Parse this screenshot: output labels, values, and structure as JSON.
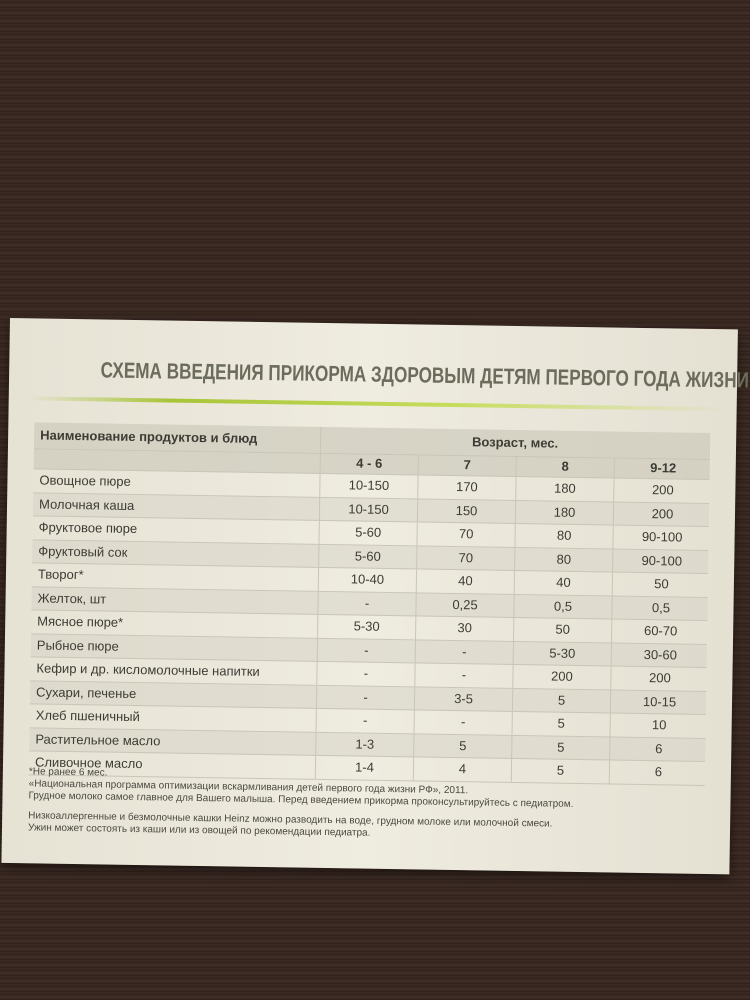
{
  "title": "СХЕМА ВВЕДЕНИЯ ПРИКОРМА ЗДОРОВЫМ ДЕТЯМ ПЕРВОГО ГОДА ЖИЗНИ",
  "table": {
    "header": {
      "name": "Наименование продуктов и блюд",
      "age": "Возраст, мес.",
      "columns": [
        "4 - 6",
        "7",
        "8",
        "9-12"
      ]
    },
    "rows": [
      [
        "Овощное пюре",
        "10-150",
        "170",
        "180",
        "200"
      ],
      [
        "Молочная каша",
        "10-150",
        "150",
        "180",
        "200"
      ],
      [
        "Фруктовое пюре",
        "5-60",
        "70",
        "80",
        "90-100"
      ],
      [
        "Фруктовый сок",
        "5-60",
        "70",
        "80",
        "90-100"
      ],
      [
        "Творог*",
        "10-40",
        "40",
        "40",
        "50"
      ],
      [
        "Желток, шт",
        "-",
        "0,25",
        "0,5",
        "0,5"
      ],
      [
        "Мясное пюре*",
        "5-30",
        "30",
        "50",
        "60-70"
      ],
      [
        "Рыбное пюре",
        "-",
        "-",
        "5-30",
        "30-60"
      ],
      [
        "Кефир и др. кисломолочные напитки",
        "-",
        "-",
        "200",
        "200"
      ],
      [
        "Сухари, печенье",
        "-",
        "3-5",
        "5",
        "10-15"
      ],
      [
        "Хлеб пшеничный",
        "-",
        "-",
        "5",
        "10"
      ],
      [
        "Растительное масло",
        "1-3",
        "5",
        "5",
        "6"
      ],
      [
        "Сливочное масло",
        "1-4",
        "4",
        "5",
        "6"
      ]
    ]
  },
  "notes": [
    "*Не ранее 6 мес.",
    "«Национальная программа оптимизации вскармливания детей первого года жизни РФ», 2011.",
    "Грудное молоко самое главное для Вашего малыша. Перед введением прикорма проконсультируйтесь с педиатром.",
    "Низкоаллергенные и безмолочные кашки Heinz можно разводить на воде, грудном молоке или молочной смеси.",
    "Ужин может состоять из каши или из овощей по рекомендации педиатра."
  ]
}
